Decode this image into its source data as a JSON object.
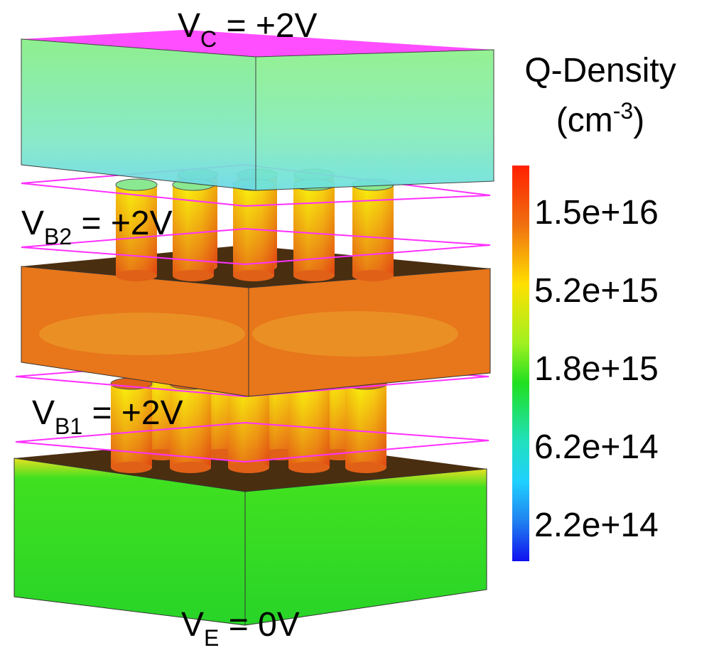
{
  "labels": [
    {
      "main": "V",
      "sub": "C",
      "rest": " = +2V"
    },
    {
      "main": "V",
      "sub": "B2",
      "rest": " = +2V"
    },
    {
      "main": "V",
      "sub": "B1",
      "rest": " = +2V"
    },
    {
      "main": "V",
      "sub": "E",
      "rest": " = 0V"
    }
  ],
  "colorbar": {
    "title": "Q-Density",
    "unit_open": "(cm",
    "unit_sup": "-3",
    "unit_close": ")",
    "ticks": [
      "1.5e+16",
      "5.2e+15",
      "1.8e+15",
      "6.2e+14",
      "2.2e+14"
    ]
  }
}
